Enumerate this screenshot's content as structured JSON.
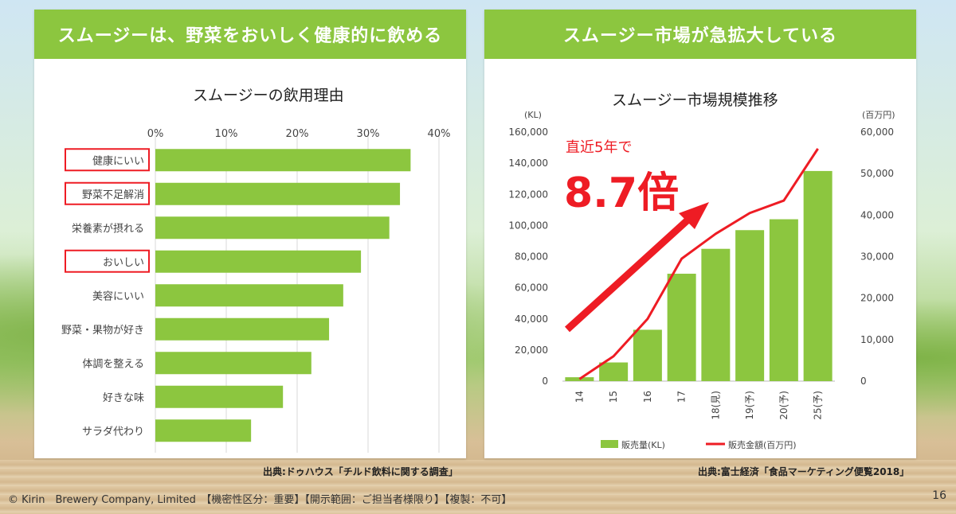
{
  "left": {
    "header": "スムージーは、野菜をおいしく健康的に飲める",
    "source": "出典:ドゥハウス「チルド飲料に関する調査」"
  },
  "right": {
    "header": "スムージー市場が急拡大している",
    "source": "出典:富士経済「食品マーケティング便覧2018」",
    "callout_line1": "直近5年で",
    "callout_big": "8.7倍"
  },
  "footer": {
    "copyright": "© Kirin　Brewery Company, Limited　【機密性区分：重要】【開示範囲：ご担当者様限り】【複製：不可】",
    "page": "16"
  },
  "colors": {
    "green": "#8cc63f",
    "red": "#ee1c24",
    "bar": "#8cc63f"
  },
  "chart_data": [
    {
      "type": "bar",
      "orientation": "horizontal",
      "title": "スムージーの飲用理由",
      "categories": [
        "健康にいい",
        "野菜不足解消",
        "栄養素が摂れる",
        "おいしい",
        "美容にいい",
        "野菜・果物が好き",
        "体調を整える",
        "好きな味",
        "サラダ代わり"
      ],
      "values": [
        36,
        34.5,
        33,
        29,
        26.5,
        24.5,
        22,
        18,
        13.5
      ],
      "highlighted": [
        "健康にいい",
        "野菜不足解消",
        "おいしい"
      ],
      "xlim": [
        0,
        40
      ],
      "xticks": [
        "0%",
        "10%",
        "20%",
        "30%",
        "40%"
      ]
    },
    {
      "type": "bar",
      "title": "スムージー市場規模推移",
      "categories": [
        "14",
        "15",
        "16",
        "17",
        "18(見)",
        "19(予)",
        "20(予)",
        "25(予)"
      ],
      "series": [
        {
          "name": "販売量(KL)",
          "type": "bar",
          "axis": "left",
          "values": [
            2500,
            12000,
            33000,
            69000,
            85000,
            97000,
            104000,
            135000
          ]
        },
        {
          "name": "販売金額(百万円)",
          "type": "line",
          "axis": "right",
          "values": [
            500,
            6000,
            15000,
            29500,
            35500,
            40500,
            43500,
            56000
          ]
        }
      ],
      "ylabel_left": "(KL)",
      "ylabel_right": "(百万円)",
      "ylim_left": [
        0,
        160000
      ],
      "ylim_right": [
        0,
        60000
      ],
      "yticks_left": [
        "160,000",
        "140,000",
        "120,000",
        "100,000",
        "80,000",
        "60,000",
        "40,000",
        "20,000",
        "0"
      ],
      "yticks_right": [
        "60,000",
        "50,000",
        "40,000",
        "30,000",
        "20,000",
        "10,000",
        "0"
      ],
      "legend_position": "bottom"
    }
  ]
}
